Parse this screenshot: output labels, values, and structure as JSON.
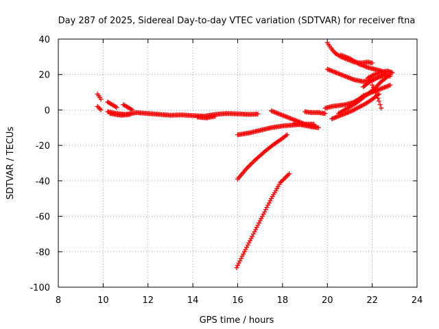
{
  "chart_data": {
    "type": "scatter",
    "title": "Day 287 of 2025, Sidereal Day-to-day VTEC variation (SDTVAR) for receiver ftna",
    "xlabel": "GPS time / hours",
    "ylabel": "SDTVAR / TECUs",
    "xlim": [
      8,
      24
    ],
    "ylim": [
      -100,
      40
    ],
    "xticks": [
      "8",
      "10",
      "12",
      "14",
      "16",
      "18",
      "20",
      "22",
      "24"
    ],
    "yticks": [
      "40",
      "20",
      "0",
      "-20",
      "-40",
      "-60",
      "-80",
      "-100"
    ],
    "grid": true,
    "marker_color": "#ff0000",
    "series": [
      {
        "x": [
          9.75,
          9.9
        ],
        "y": [
          9,
          6
        ]
      },
      {
        "x": [
          9.75,
          9.9
        ],
        "y": [
          2,
          0
        ]
      },
      {
        "x": [
          10.2,
          10.4,
          10.6
        ],
        "y": [
          4.5,
          3,
          1.5
        ]
      },
      {
        "x": [
          10.9,
          11.1,
          11.3
        ],
        "y": [
          3,
          1.5,
          0
        ]
      },
      {
        "x": [
          10.2,
          10.6,
          11,
          11.5,
          12,
          12.5,
          13,
          13.5,
          14,
          14.5,
          15,
          15.5,
          16,
          16.5,
          16.9
        ],
        "y": [
          -1,
          -2,
          -2.5,
          -1.5,
          -2,
          -2.5,
          -3,
          -2.8,
          -3.2,
          -3.5,
          -2.5,
          -2,
          -2.2,
          -2.5,
          -2.3
        ]
      },
      {
        "x": [
          10.3,
          10.8,
          11.2
        ],
        "y": [
          -2,
          -3,
          -2.5
        ]
      },
      {
        "x": [
          14.2,
          14.6,
          15.0
        ],
        "y": [
          -4,
          -4.5,
          -3.5
        ]
      },
      {
        "x": [
          17.5,
          17.8,
          18.1,
          18.4,
          18.7,
          19.0,
          19.3,
          19.5
        ],
        "y": [
          -0.5,
          -2,
          -3.5,
          -5,
          -6.5,
          -8,
          -9,
          -9.5
        ]
      },
      {
        "x": [
          18.5,
          18.9,
          19.3,
          19.6
        ],
        "y": [
          -7.5,
          -8.5,
          -9.5,
          -10
        ]
      },
      {
        "x": [
          19.0,
          19.3,
          19.6,
          19.9
        ],
        "y": [
          -1,
          -1.5,
          -1.5,
          -2
        ]
      },
      {
        "x": [
          16.0,
          16.5,
          17.0,
          17.5,
          18.0,
          18.5,
          19.0,
          19.4
        ],
        "y": [
          -14,
          -13,
          -11.5,
          -10,
          -9,
          -8.5,
          -8,
          -8
        ]
      },
      {
        "x": [
          16.0,
          16.4,
          16.8,
          17.2,
          17.6,
          18.0,
          18.2
        ],
        "y": [
          -39,
          -33,
          -28,
          -23.5,
          -19.5,
          -16,
          -14
        ]
      },
      {
        "x": [
          15.95,
          16.3,
          16.7,
          17.1,
          17.5,
          17.9,
          18.3
        ],
        "y": [
          -89,
          -80,
          -70,
          -60,
          -50,
          -41,
          -36
        ]
      },
      {
        "x": [
          19.9,
          20.2,
          20.5,
          20.8,
          21.1,
          21.4,
          21.6
        ],
        "y": [
          1,
          2,
          2.5,
          3,
          4,
          6,
          8
        ]
      },
      {
        "x": [
          20.2,
          20.5,
          20.8,
          21.1,
          21.4,
          21.7,
          22.0,
          22.3
        ],
        "y": [
          -5,
          -3.5,
          -2,
          -0.5,
          1.5,
          3.5,
          6,
          9
        ]
      },
      {
        "x": [
          20.5,
          20.9,
          21.3,
          21.7,
          22.1,
          22.4,
          22.7
        ],
        "y": [
          -2,
          1,
          4,
          8,
          12,
          16,
          19
        ]
      },
      {
        "x": [
          21.0,
          21.3,
          21.6,
          22.0,
          22.4,
          22.8
        ],
        "y": [
          2,
          5,
          8,
          10,
          12,
          14
        ]
      },
      {
        "x": [
          20.0,
          20.15,
          20.35,
          20.6,
          20.9,
          21.2,
          21.5,
          21.8,
          22.0
        ],
        "y": [
          38,
          35,
          32,
          30,
          28.5,
          27,
          26.5,
          27,
          26.5
        ]
      },
      {
        "x": [
          20.6,
          21.0,
          21.4,
          21.8,
          22.1,
          22.4,
          22.6
        ],
        "y": [
          31,
          29,
          26,
          24,
          23,
          22,
          21
        ]
      },
      {
        "x": [
          20.0,
          20.4,
          20.8,
          21.2,
          21.6,
          22.0,
          22.4,
          22.8
        ],
        "y": [
          23,
          21,
          19,
          17,
          16,
          17,
          19,
          20
        ]
      },
      {
        "x": [
          21.8,
          22.1,
          22.4,
          22.7,
          22.9
        ],
        "y": [
          18,
          20,
          21.5,
          22,
          21
        ]
      },
      {
        "x": [
          22.0,
          22.15,
          22.3,
          22.4
        ],
        "y": [
          14,
          10,
          5,
          1
        ]
      },
      {
        "x": [
          21.6,
          21.9,
          22.2,
          22.5,
          22.8
        ],
        "y": [
          13,
          16,
          18,
          20,
          19
        ]
      }
    ]
  }
}
